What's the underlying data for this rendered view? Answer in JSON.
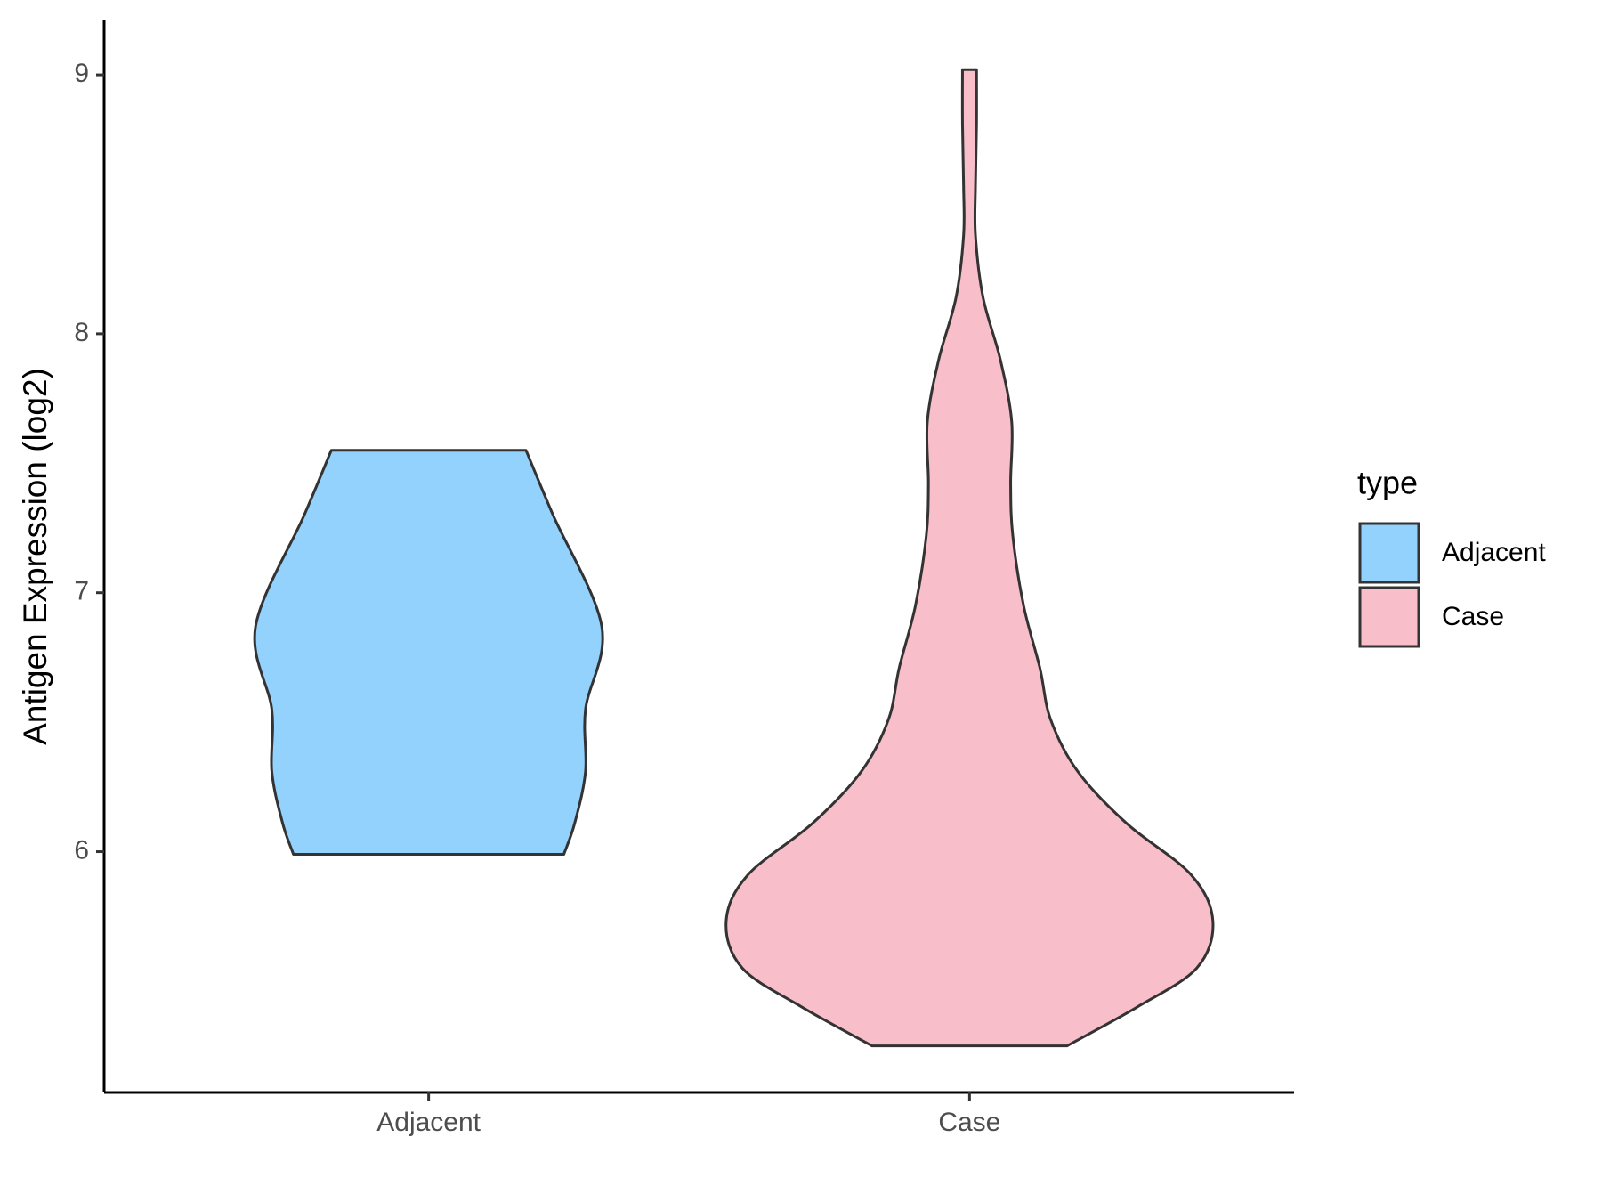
{
  "chart_data": {
    "type": "violin",
    "y_label": "Antigen Expression (log2)",
    "categories": [
      "Adjacent",
      "Case"
    ],
    "ylim": [
      5.07,
      9.21
    ],
    "yticks": [
      6,
      7,
      8,
      9
    ],
    "legend_title": "type",
    "legend_position": "right",
    "series": [
      {
        "name": "Adjacent",
        "color": "#92d2fd",
        "y": [
          5.99,
          6.11,
          6.31,
          6.55,
          6.87,
          7.3,
          7.55
        ],
        "widths": [
          0.25,
          0.27,
          0.29,
          0.29,
          0.32,
          0.23,
          0.18
        ]
      },
      {
        "name": "Case",
        "color": "#f8bfca",
        "y": [
          5.25,
          5.4,
          5.55,
          5.73,
          5.91,
          6.11,
          6.31,
          6.51,
          6.71,
          6.95,
          7.22,
          7.42,
          7.66,
          7.9,
          8.14,
          8.38,
          8.57,
          8.81,
          9.02
        ],
        "widths": [
          0.18,
          0.31,
          0.42,
          0.45,
          0.41,
          0.29,
          0.2,
          0.15,
          0.13,
          0.1,
          0.08,
          0.076,
          0.078,
          0.057,
          0.025,
          0.011,
          0.011,
          0.013,
          0.013
        ]
      }
    ]
  }
}
